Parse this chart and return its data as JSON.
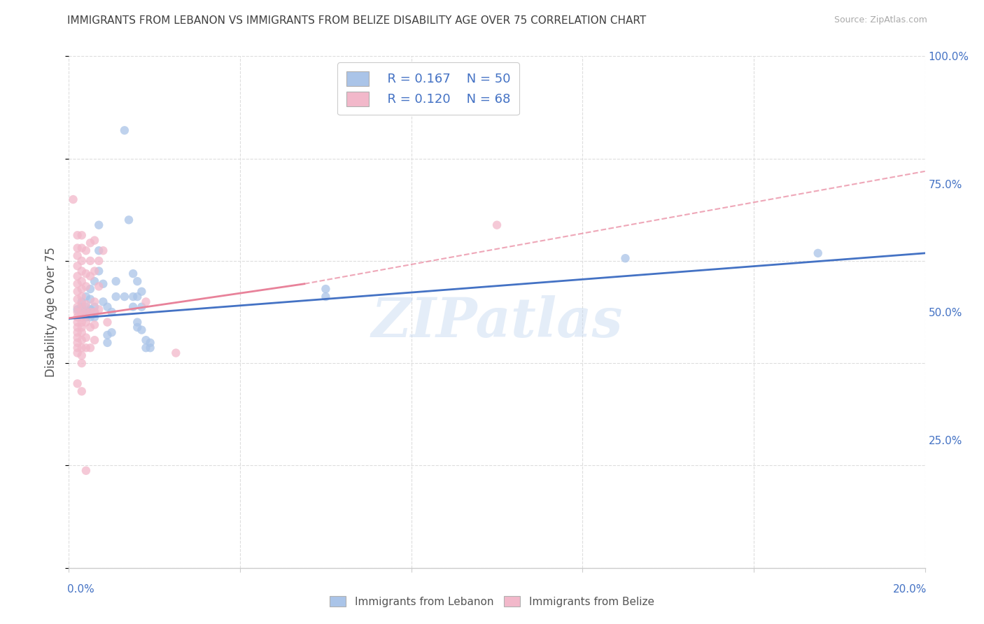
{
  "title": "IMMIGRANTS FROM LEBANON VS IMMIGRANTS FROM BELIZE DISABILITY AGE OVER 75 CORRELATION CHART",
  "source": "Source: ZipAtlas.com",
  "ylabel": "Disability Age Over 75",
  "lebanon_color": "#aac4e8",
  "belize_color": "#f2b8ca",
  "lebanon_line_color": "#4472c4",
  "belize_line_color": "#e8829a",
  "background_color": "#ffffff",
  "grid_color": "#dddddd",
  "title_color": "#404040",
  "source_color": "#aaaaaa",
  "axis_label_color": "#4472c4",
  "watermark": "ZIPatlas",
  "xmin": 0.0,
  "xmax": 0.2,
  "ymin": 0.0,
  "ymax": 1.0,
  "lebanon_scatter": [
    [
      0.002,
      0.505
    ],
    [
      0.003,
      0.51
    ],
    [
      0.003,
      0.495
    ],
    [
      0.003,
      0.52
    ],
    [
      0.004,
      0.5
    ],
    [
      0.004,
      0.53
    ],
    [
      0.004,
      0.49
    ],
    [
      0.004,
      0.51
    ],
    [
      0.005,
      0.545
    ],
    [
      0.005,
      0.5
    ],
    [
      0.005,
      0.525
    ],
    [
      0.005,
      0.49
    ],
    [
      0.005,
      0.505
    ],
    [
      0.006,
      0.56
    ],
    [
      0.006,
      0.51
    ],
    [
      0.006,
      0.49
    ],
    [
      0.006,
      0.5
    ],
    [
      0.007,
      0.67
    ],
    [
      0.007,
      0.62
    ],
    [
      0.007,
      0.58
    ],
    [
      0.008,
      0.555
    ],
    [
      0.008,
      0.52
    ],
    [
      0.009,
      0.51
    ],
    [
      0.009,
      0.455
    ],
    [
      0.009,
      0.44
    ],
    [
      0.01,
      0.5
    ],
    [
      0.01,
      0.46
    ],
    [
      0.011,
      0.56
    ],
    [
      0.011,
      0.53
    ],
    [
      0.013,
      0.855
    ],
    [
      0.013,
      0.53
    ],
    [
      0.014,
      0.68
    ],
    [
      0.015,
      0.575
    ],
    [
      0.015,
      0.53
    ],
    [
      0.015,
      0.51
    ],
    [
      0.016,
      0.56
    ],
    [
      0.016,
      0.53
    ],
    [
      0.016,
      0.48
    ],
    [
      0.016,
      0.47
    ],
    [
      0.017,
      0.54
    ],
    [
      0.017,
      0.51
    ],
    [
      0.017,
      0.465
    ],
    [
      0.018,
      0.445
    ],
    [
      0.018,
      0.43
    ],
    [
      0.019,
      0.43
    ],
    [
      0.019,
      0.44
    ],
    [
      0.06,
      0.545
    ],
    [
      0.06,
      0.53
    ],
    [
      0.13,
      0.605
    ],
    [
      0.175,
      0.615
    ]
  ],
  "belize_scatter": [
    [
      0.001,
      0.72
    ],
    [
      0.002,
      0.65
    ],
    [
      0.002,
      0.625
    ],
    [
      0.002,
      0.61
    ],
    [
      0.002,
      0.59
    ],
    [
      0.002,
      0.57
    ],
    [
      0.002,
      0.555
    ],
    [
      0.002,
      0.54
    ],
    [
      0.002,
      0.525
    ],
    [
      0.002,
      0.51
    ],
    [
      0.002,
      0.5
    ],
    [
      0.002,
      0.49
    ],
    [
      0.002,
      0.48
    ],
    [
      0.002,
      0.47
    ],
    [
      0.002,
      0.46
    ],
    [
      0.002,
      0.45
    ],
    [
      0.002,
      0.44
    ],
    [
      0.002,
      0.43
    ],
    [
      0.002,
      0.42
    ],
    [
      0.002,
      0.36
    ],
    [
      0.003,
      0.65
    ],
    [
      0.003,
      0.625
    ],
    [
      0.003,
      0.6
    ],
    [
      0.003,
      0.58
    ],
    [
      0.003,
      0.56
    ],
    [
      0.003,
      0.545
    ],
    [
      0.003,
      0.53
    ],
    [
      0.003,
      0.515
    ],
    [
      0.003,
      0.5
    ],
    [
      0.003,
      0.49
    ],
    [
      0.003,
      0.48
    ],
    [
      0.003,
      0.47
    ],
    [
      0.003,
      0.46
    ],
    [
      0.003,
      0.445
    ],
    [
      0.003,
      0.43
    ],
    [
      0.003,
      0.415
    ],
    [
      0.003,
      0.4
    ],
    [
      0.003,
      0.345
    ],
    [
      0.004,
      0.62
    ],
    [
      0.004,
      0.575
    ],
    [
      0.004,
      0.55
    ],
    [
      0.004,
      0.515
    ],
    [
      0.004,
      0.5
    ],
    [
      0.004,
      0.48
    ],
    [
      0.004,
      0.45
    ],
    [
      0.004,
      0.43
    ],
    [
      0.005,
      0.635
    ],
    [
      0.005,
      0.6
    ],
    [
      0.005,
      0.57
    ],
    [
      0.005,
      0.5
    ],
    [
      0.005,
      0.47
    ],
    [
      0.005,
      0.43
    ],
    [
      0.006,
      0.64
    ],
    [
      0.006,
      0.58
    ],
    [
      0.006,
      0.52
    ],
    [
      0.006,
      0.5
    ],
    [
      0.006,
      0.475
    ],
    [
      0.006,
      0.445
    ],
    [
      0.007,
      0.6
    ],
    [
      0.007,
      0.55
    ],
    [
      0.007,
      0.505
    ],
    [
      0.008,
      0.62
    ],
    [
      0.009,
      0.48
    ],
    [
      0.004,
      0.19
    ],
    [
      0.018,
      0.52
    ],
    [
      0.025,
      0.42
    ],
    [
      0.1,
      0.67
    ]
  ],
  "lebanon_trend": [
    0.0,
    0.2,
    0.487,
    0.615
  ],
  "belize_trend_solid": [
    0.0,
    0.055,
    0.488,
    0.555
  ],
  "belize_trend_dashed": [
    0.055,
    0.2,
    0.555,
    0.775
  ]
}
